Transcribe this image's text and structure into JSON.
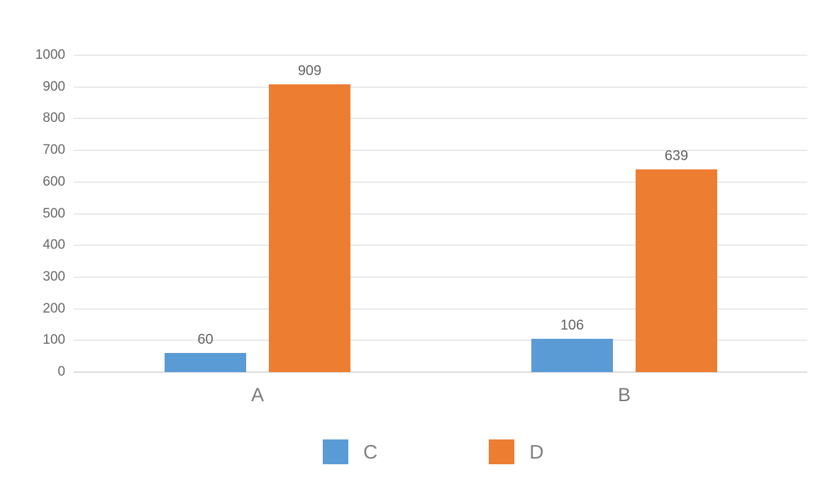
{
  "chart_data": {
    "type": "bar",
    "title": "",
    "xlabel": "",
    "ylabel": "",
    "categories": [
      "A",
      "B"
    ],
    "series": [
      {
        "name": "C",
        "color": "#5B9BD5",
        "values": [
          60,
          106
        ]
      },
      {
        "name": "D",
        "color": "#ED7D31",
        "values": [
          909,
          639
        ]
      }
    ],
    "ylim": [
      0,
      1000
    ],
    "ytick_step": 100,
    "yticks": [
      "1000",
      "900",
      "800",
      "700",
      "600",
      "500",
      "400",
      "300",
      "200",
      "100",
      "0"
    ],
    "grid": true,
    "data_labels": true,
    "legend_position": "bottom"
  },
  "colors": {
    "background": "#ffffff",
    "series_c": "#5B9BD5",
    "series_d": "#ED7D31",
    "gridline": "#e9e9e9",
    "axis_baseline": "#dcdcdc",
    "tick_label": "#686868",
    "data_label": "#646464",
    "category_label": "#7b7b7b",
    "legend_label": "#828282"
  }
}
